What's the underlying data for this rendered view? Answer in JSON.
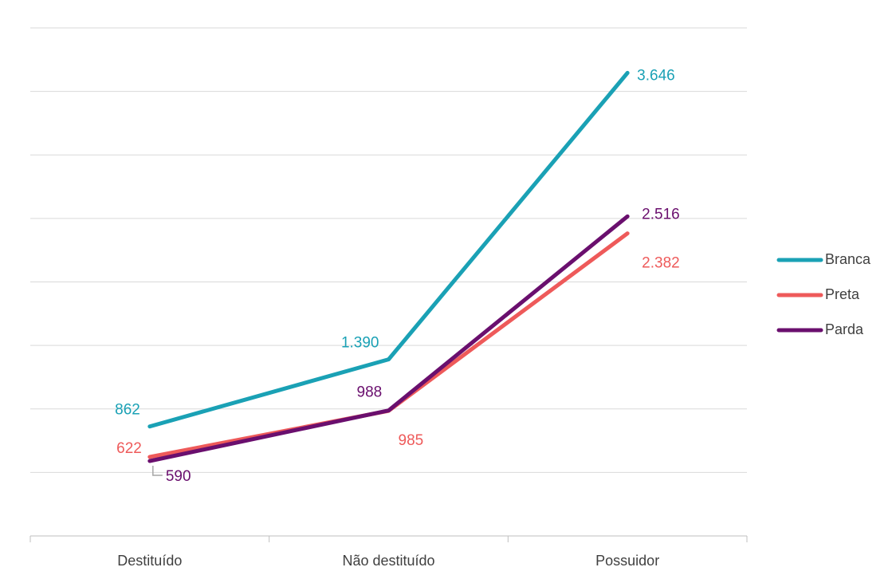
{
  "chart_data": {
    "type": "line",
    "categories": [
      "Destituído",
      "Não destituído",
      "Possuidor"
    ],
    "series": [
      {
        "name": "Branca",
        "color": "#1aa1b5",
        "values": [
          862,
          1390,
          3646
        ],
        "labels": [
          "862",
          "1.390",
          "3.646"
        ]
      },
      {
        "name": "Preta",
        "color": "#ee5a5a",
        "values": [
          622,
          985,
          2382
        ],
        "labels": [
          "622",
          "985",
          "2.382"
        ]
      },
      {
        "name": "Parda",
        "color": "#6a0f6e",
        "values": [
          590,
          988,
          2516
        ],
        "labels": [
          "590",
          "988",
          "2.516"
        ]
      }
    ],
    "ylim": [
      0,
      4000
    ],
    "grid": true,
    "legend_position": "right"
  }
}
